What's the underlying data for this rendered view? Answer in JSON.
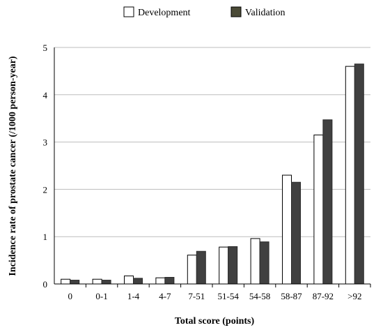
{
  "chart_data": {
    "type": "bar",
    "title": "",
    "xlabel": "Total score (points)",
    "ylabel": "Incidence rate of prostate cancer (/1000 person-year)",
    "ylim": [
      0,
      5
    ],
    "yticks": [
      "0",
      "1",
      "2",
      "3",
      "4",
      "5"
    ],
    "grid": true,
    "legend_position": "top",
    "categories": [
      "0",
      "0-1",
      "1-4",
      "4-7",
      "7-51",
      "51-54",
      "54-58",
      "58-87",
      "87-92",
      ">92"
    ],
    "series": [
      {
        "name": "Development",
        "color": "#ffffff",
        "values": [
          0.1,
          0.1,
          0.17,
          0.13,
          0.61,
          0.78,
          0.96,
          2.3,
          3.15,
          4.6
        ]
      },
      {
        "name": "Validation",
        "color": "#404040",
        "values": [
          0.08,
          0.08,
          0.12,
          0.14,
          0.69,
          0.79,
          0.89,
          2.15,
          3.47,
          4.65
        ]
      }
    ],
    "legend_swatch_colors": [
      "#ffffff",
      "#4a4a36"
    ]
  }
}
